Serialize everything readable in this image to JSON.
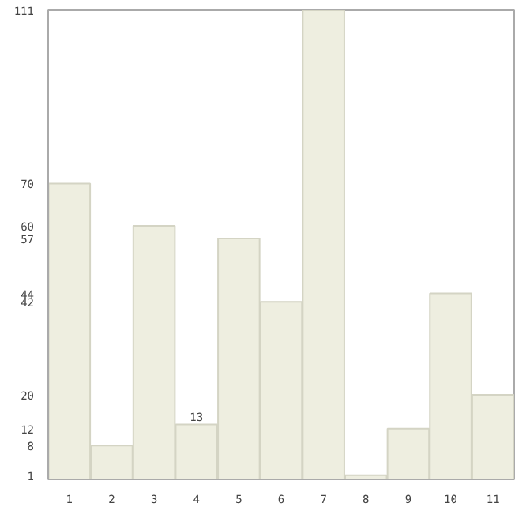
{
  "chart_data": {
    "type": "bar",
    "categories": [
      "1",
      "2",
      "3",
      "4",
      "5",
      "6",
      "7",
      "8",
      "9",
      "10",
      "11"
    ],
    "values": [
      70,
      8,
      60,
      13,
      57,
      42,
      111,
      1,
      12,
      44,
      20
    ],
    "color": "#eeeee0",
    "ylim": [
      0,
      111
    ],
    "yticks": [
      1,
      8,
      12,
      20,
      42,
      44,
      57,
      60,
      70,
      111
    ],
    "annotations": [
      {
        "text": "13",
        "x": "4",
        "y": 13
      }
    ],
    "grid": false
  }
}
